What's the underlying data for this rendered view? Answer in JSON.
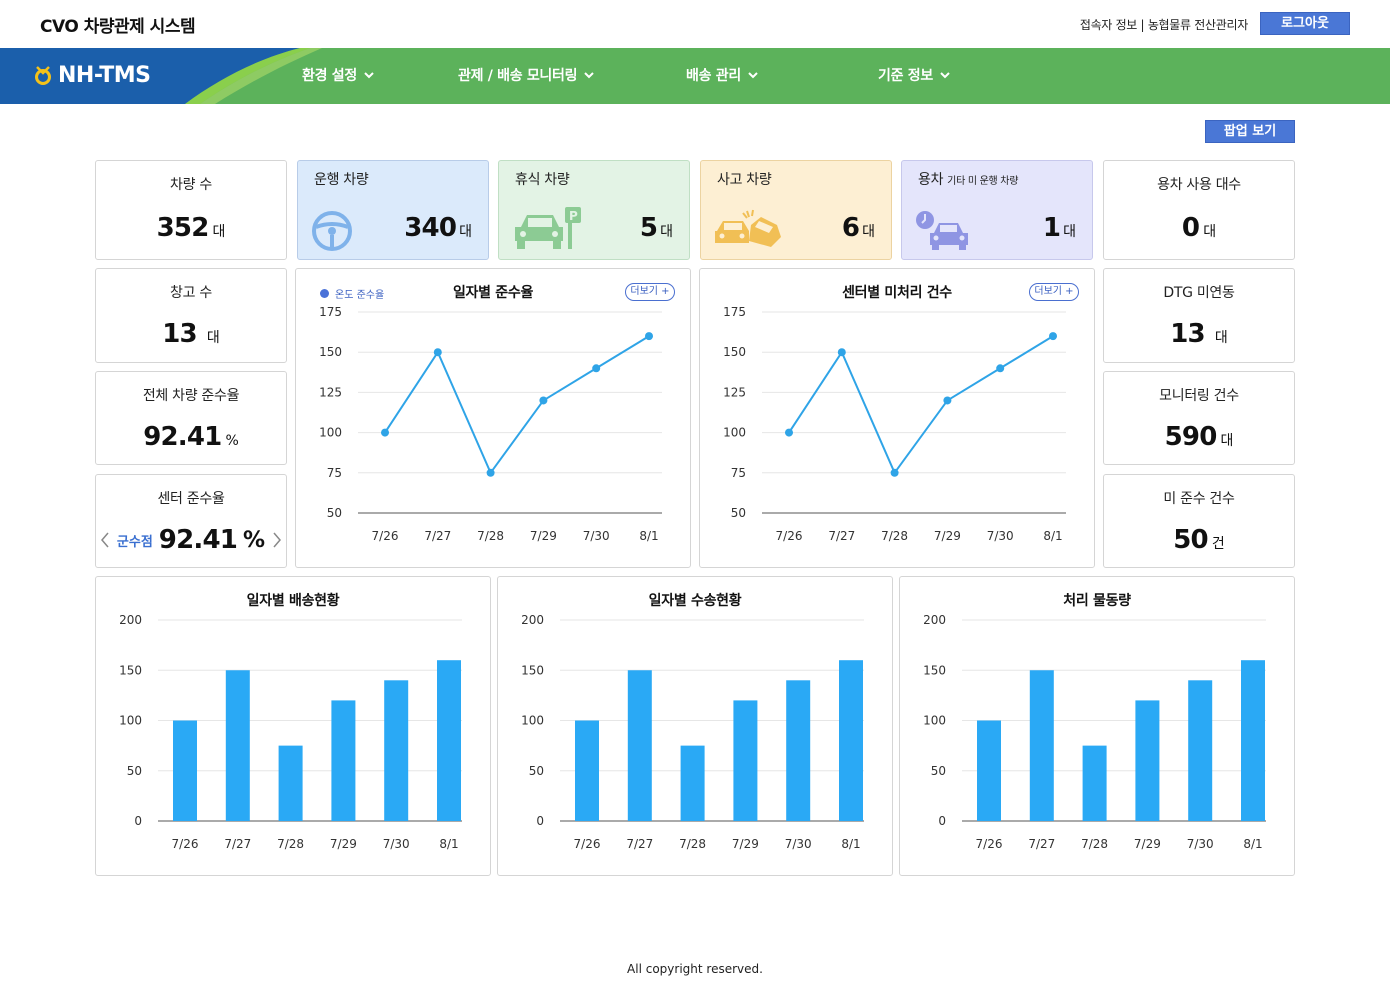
{
  "app": {
    "title": "CVO 차량관제 시스템",
    "user_info": "접속자 정보 | 농협물류 전산관리자",
    "logout_label": "로그아웃"
  },
  "nav": {
    "logo_text": "NH-TMS",
    "items": [
      {
        "label": "환경 설정"
      },
      {
        "label": "관제 / 배송 모니터링"
      },
      {
        "label": "배송 관리"
      },
      {
        "label": "기준 정보"
      }
    ]
  },
  "popup_label": "팝업 보기",
  "stats": {
    "vehicles": {
      "title": "차량 수",
      "value": "352",
      "unit": "대"
    },
    "running": {
      "title": "운행 차량",
      "value": "340",
      "unit": "대",
      "icon": "steering-wheel-icon"
    },
    "resting": {
      "title": "휴식 차량",
      "value": "5",
      "unit": "대",
      "icon": "parked-car-icon"
    },
    "accident": {
      "title": "사고 차량",
      "value": "6",
      "unit": "대",
      "icon": "car-crash-icon"
    },
    "service": {
      "title": "용차",
      "subtitle": "기타 미 운행 차량",
      "value": "1",
      "unit": "대",
      "icon": "car-clock-icon"
    },
    "service_usage": {
      "title": "용차 사용 대수",
      "value": "0",
      "unit": "대"
    },
    "warehouses": {
      "title": "창고 수",
      "value": "13",
      "unit": "대"
    },
    "compliance": {
      "title": "전체 차량 준수율",
      "value": "92.41",
      "unit": "%"
    },
    "center_compliance": {
      "title": "센터 준수율",
      "center_name": "군수점",
      "value": "92.41",
      "unit": "%"
    },
    "dtg": {
      "title": "DTG 미연동",
      "value": "13",
      "unit": "대"
    },
    "monitoring": {
      "title": "모니터링 건수",
      "value": "590",
      "unit": "대"
    },
    "non_compliance": {
      "title": "미 준수 건수",
      "value": "50",
      "unit": "건"
    }
  },
  "more_label": "더보기 +",
  "colors": {
    "line": "#2fa4e7",
    "bar": "#2aa9f5",
    "nav_green": "#5cb25b",
    "nav_blue": "#1b5fab",
    "button_blue": "#4a77d6"
  },
  "chart_data": [
    {
      "type": "line",
      "title": "일자별 준수율",
      "legend": [
        "온도 준수율"
      ],
      "categories": [
        "7/26",
        "7/27",
        "7/28",
        "7/29",
        "7/30",
        "8/1"
      ],
      "series": [
        {
          "name": "온도 준수율",
          "values": [
            100,
            150,
            75,
            120,
            140,
            160
          ]
        }
      ],
      "yticks": [
        50,
        75,
        100,
        125,
        150,
        175
      ],
      "ylim": [
        50,
        175
      ],
      "grid": true
    },
    {
      "type": "line",
      "title": "센터별 미처리 건수",
      "categories": [
        "7/26",
        "7/27",
        "7/28",
        "7/29",
        "7/30",
        "8/1"
      ],
      "series": [
        {
          "values": [
            100,
            150,
            75,
            120,
            140,
            160
          ]
        }
      ],
      "yticks": [
        50,
        75,
        100,
        125,
        150,
        175
      ],
      "ylim": [
        50,
        175
      ],
      "grid": true
    },
    {
      "type": "bar",
      "title": "일자별 배송현황",
      "categories": [
        "7/26",
        "7/27",
        "7/28",
        "7/29",
        "7/30",
        "8/1"
      ],
      "values": [
        100,
        150,
        75,
        120,
        140,
        160
      ],
      "yticks": [
        0,
        50,
        100,
        150,
        200
      ],
      "ylim": [
        0,
        200
      ],
      "grid": true
    },
    {
      "type": "bar",
      "title": "일자별 수송현황",
      "categories": [
        "7/26",
        "7/27",
        "7/28",
        "7/29",
        "7/30",
        "8/1"
      ],
      "values": [
        100,
        150,
        75,
        120,
        140,
        160
      ],
      "yticks": [
        0,
        50,
        100,
        150,
        200
      ],
      "ylim": [
        0,
        200
      ],
      "grid": true
    },
    {
      "type": "bar",
      "title": "처리 물동량",
      "categories": [
        "7/26",
        "7/27",
        "7/28",
        "7/29",
        "7/30",
        "8/1"
      ],
      "values": [
        100,
        150,
        75,
        120,
        140,
        160
      ],
      "yticks": [
        0,
        50,
        100,
        150,
        200
      ],
      "ylim": [
        0,
        200
      ],
      "grid": true
    }
  ],
  "footer": "All copyright reserved."
}
